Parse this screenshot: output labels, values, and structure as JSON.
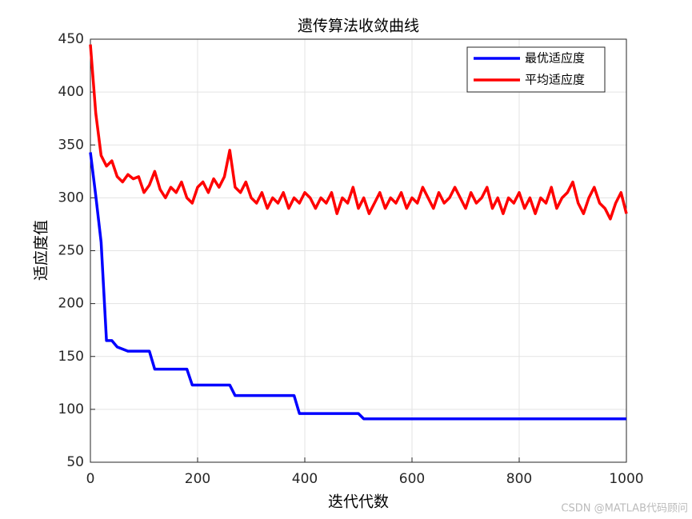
{
  "chart_data": {
    "type": "line",
    "title": "遗传算法收敛曲线",
    "xlabel": "迭代代数",
    "ylabel": "适应度值",
    "x": [
      0,
      10,
      20,
      30,
      40,
      50,
      60,
      70,
      80,
      90,
      100,
      110,
      120,
      130,
      140,
      150,
      160,
      170,
      180,
      190,
      200,
      210,
      220,
      230,
      240,
      250,
      260,
      270,
      280,
      290,
      300,
      310,
      320,
      330,
      340,
      350,
      360,
      370,
      380,
      390,
      400,
      410,
      420,
      430,
      440,
      450,
      460,
      470,
      480,
      490,
      500,
      510,
      520,
      530,
      540,
      550,
      560,
      570,
      580,
      590,
      600,
      610,
      620,
      630,
      640,
      650,
      660,
      670,
      680,
      690,
      700,
      710,
      720,
      730,
      740,
      750,
      760,
      770,
      780,
      790,
      800,
      810,
      820,
      830,
      840,
      850,
      860,
      870,
      880,
      890,
      900,
      910,
      920,
      930,
      940,
      950,
      960,
      970,
      980,
      990,
      1000
    ],
    "series": [
      {
        "name": "最优适应度",
        "color": "#0000ff",
        "values": [
          343,
          302,
          258,
          165,
          165,
          159,
          157,
          155,
          155,
          155,
          155,
          155,
          138,
          138,
          138,
          138,
          138,
          138,
          138,
          123,
          123,
          123,
          123,
          123,
          123,
          123,
          123,
          113,
          113,
          113,
          113,
          113,
          113,
          113,
          113,
          113,
          113,
          113,
          113,
          96,
          96,
          96,
          96,
          96,
          96,
          96,
          96,
          96,
          96,
          96,
          96,
          91,
          91,
          91,
          91,
          91,
          91,
          91,
          91,
          91,
          91,
          91,
          91,
          91,
          91,
          91,
          91,
          91,
          91,
          91,
          91,
          91,
          91,
          91,
          91,
          91,
          91,
          91,
          91,
          91,
          91,
          91,
          91,
          91,
          91,
          91,
          91,
          91,
          91,
          91,
          91,
          91,
          91,
          91,
          91,
          91,
          91,
          91,
          91,
          91,
          91
        ]
      },
      {
        "name": "平均适应度",
        "color": "#ff0000",
        "values": [
          445,
          380,
          340,
          330,
          335,
          320,
          315,
          322,
          318,
          320,
          305,
          312,
          325,
          308,
          300,
          310,
          305,
          315,
          300,
          295,
          310,
          315,
          305,
          318,
          310,
          320,
          345,
          310,
          305,
          315,
          300,
          295,
          305,
          290,
          300,
          295,
          305,
          290,
          300,
          295,
          305,
          300,
          290,
          300,
          295,
          305,
          285,
          300,
          295,
          310,
          290,
          300,
          285,
          295,
          305,
          290,
          300,
          295,
          305,
          290,
          300,
          295,
          310,
          300,
          290,
          305,
          295,
          300,
          310,
          300,
          290,
          305,
          295,
          300,
          310,
          290,
          300,
          285,
          300,
          295,
          305,
          290,
          300,
          285,
          300,
          295,
          310,
          290,
          300,
          305,
          315,
          295,
          285,
          300,
          310,
          295,
          290,
          280,
          295,
          305,
          285
        ]
      }
    ],
    "xlim": [
      0,
      1000
    ],
    "xticks": [
      0,
      200,
      400,
      600,
      800,
      1000
    ],
    "ylim": [
      50,
      450
    ],
    "yticks": [
      50,
      100,
      150,
      200,
      250,
      300,
      350,
      400,
      450
    ],
    "grid": true,
    "legend": "northeast",
    "watermark": "CSDN @MATLAB代码顾问"
  }
}
